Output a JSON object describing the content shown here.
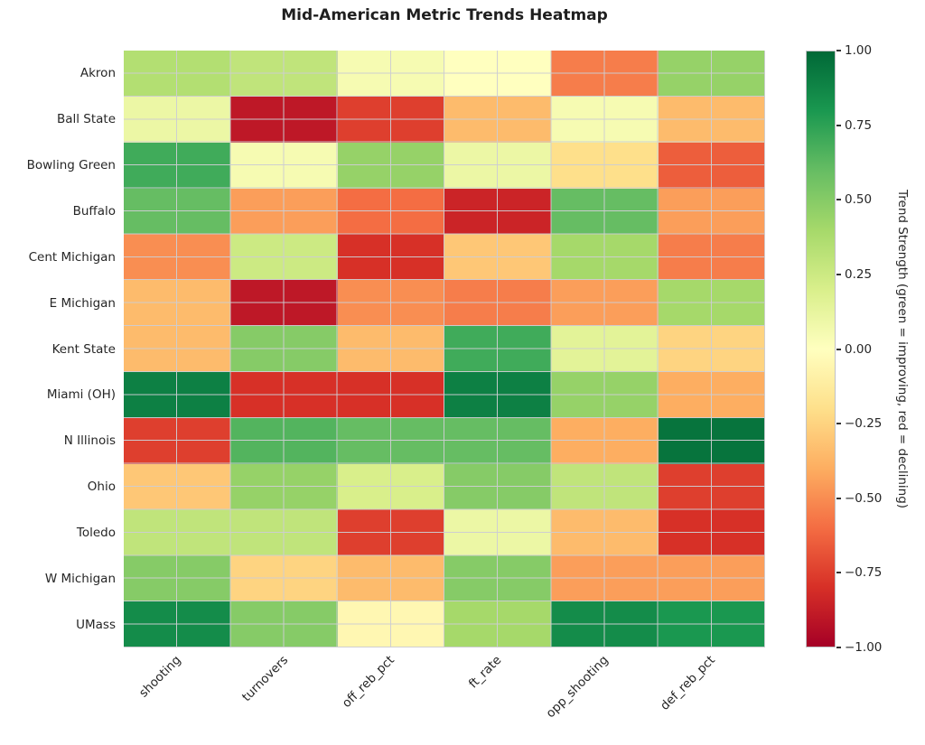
{
  "page": {
    "background": "#ffffff"
  },
  "chart_data": {
    "type": "heatmap",
    "title": "Mid-American Metric Trends Heatmap",
    "rows": [
      "Akron",
      "Ball State",
      "Bowling Green",
      "Buffalo",
      "Cent Michigan",
      "E Michigan",
      "Kent State",
      "Miami (OH)",
      "N Illinois",
      "Ohio",
      "Toledo",
      "W Michigan",
      "UMass"
    ],
    "columns": [
      "shooting",
      "turnovers",
      "off_reb_pct",
      "ft_rate",
      "opp_shooting",
      "def_reb_pct"
    ],
    "values": [
      [
        0.35,
        0.3,
        0.05,
        0.0,
        -0.55,
        0.45
      ],
      [
        0.1,
        -0.9,
        -0.75,
        -0.35,
        0.05,
        -0.35
      ],
      [
        0.7,
        0.05,
        0.45,
        0.1,
        -0.2,
        -0.65
      ],
      [
        0.6,
        -0.45,
        -0.6,
        -0.85,
        0.6,
        -0.45
      ],
      [
        -0.5,
        0.25,
        -0.8,
        -0.3,
        0.4,
        -0.55
      ],
      [
        -0.35,
        -0.9,
        -0.5,
        -0.55,
        -0.45,
        0.4
      ],
      [
        -0.35,
        0.5,
        -0.35,
        0.7,
        0.15,
        -0.25
      ],
      [
        0.9,
        -0.8,
        -0.8,
        0.9,
        0.45,
        -0.4
      ],
      [
        -0.75,
        0.65,
        0.6,
        0.6,
        -0.4,
        0.95
      ],
      [
        -0.3,
        0.45,
        0.2,
        0.5,
        0.3,
        -0.75
      ],
      [
        0.3,
        0.3,
        -0.75,
        0.1,
        -0.35,
        -0.8
      ],
      [
        0.5,
        -0.25,
        -0.35,
        0.5,
        -0.45,
        -0.45
      ],
      [
        0.85,
        0.5,
        -0.05,
        0.4,
        0.85,
        0.8
      ]
    ],
    "vmin": -1,
    "vmax": 1,
    "colormap": "RdYlGn",
    "colormap_anchors": [
      "#a50026",
      "#d73027",
      "#f46d43",
      "#fdae61",
      "#fee08b",
      "#ffffbf",
      "#d9ef8b",
      "#a6d96a",
      "#66bd63",
      "#1a9850",
      "#006837"
    ],
    "grid": true,
    "grid_color": "#cdcdd2",
    "legend_position": "right",
    "colorbar": {
      "label": "Trend Strength (green = improving, red = declining)",
      "tick_labels": [
        "1.00",
        "0.75",
        "0.50",
        "0.25",
        "0.00",
        "−0.25",
        "−0.50",
        "−0.75",
        "−1.00"
      ],
      "tick_values": [
        1.0,
        0.75,
        0.5,
        0.25,
        0.0,
        -0.25,
        -0.5,
        -0.75,
        -1.0
      ]
    }
  }
}
